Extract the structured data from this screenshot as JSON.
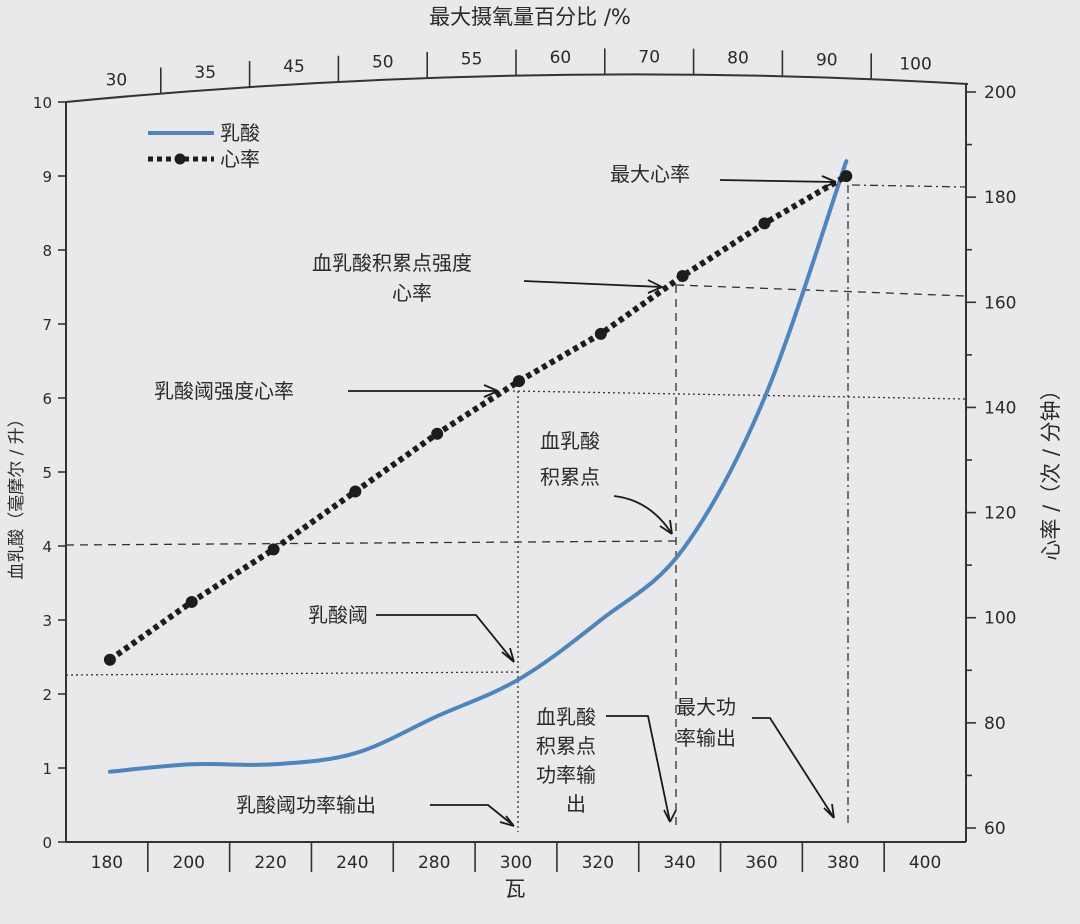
{
  "colors": {
    "lactate": "#4f84bd",
    "heart_rate": "#1d1d1d",
    "background": "#e9e9ec"
  },
  "chart_data": {
    "type": "line",
    "top_axis_label": "最大摄氧量百分比 /%",
    "top_ticks": [
      "30",
      "35",
      "45",
      "50",
      "55",
      "60",
      "70",
      "80",
      "90",
      "100"
    ],
    "xlabel": "瓦",
    "x_ticks": [
      "180",
      "200",
      "220",
      "240",
      "280",
      "300",
      "320",
      "340",
      "360",
      "380",
      "400"
    ],
    "ylabel_left": "血乳酸（毫摩尔 / 升）",
    "left_ticks": [
      "0",
      "1",
      "2",
      "3",
      "4",
      "5",
      "6",
      "7",
      "8",
      "9",
      "10"
    ],
    "ylabel_right": "心率 /（次 / 分钟）",
    "right_ticks": [
      "60",
      "80",
      "100",
      "120",
      "140",
      "160",
      "180",
      "200"
    ],
    "left_ylim": [
      0,
      10
    ],
    "right_ylim": [
      60,
      200
    ],
    "legend_position": "top-left",
    "series": [
      {
        "name": "乳酸",
        "axis": "left",
        "x": [
          "180",
          "200",
          "220",
          "240",
          "280",
          "300",
          "320",
          "340",
          "360",
          "380"
        ],
        "values": [
          0.95,
          1.05,
          1.05,
          1.2,
          1.7,
          2.2,
          3.0,
          3.95,
          6.0,
          9.2
        ]
      },
      {
        "name": "心率",
        "axis": "right",
        "x": [
          "180",
          "200",
          "220",
          "240",
          "280",
          "300",
          "320",
          "340",
          "360",
          "380"
        ],
        "values": [
          92,
          103,
          113,
          124,
          135,
          145,
          154,
          165,
          175,
          184
        ]
      }
    ],
    "annotations": {
      "max_hr": "最大心率",
      "obla_hr_line1": "血乳酸积累点强度",
      "obla_hr_line2": "心率",
      "lt_hr": "乳酸阈强度心率",
      "obla_line1": "血乳酸",
      "obla_line2": "积累点",
      "lt": "乳酸阈",
      "lt_power": "乳酸阈功率输出",
      "obla_power_lines": [
        "血乳酸",
        "积累点",
        "功率输",
        "出"
      ],
      "max_power_line1": "最大功",
      "max_power_line2": "率输出"
    }
  }
}
